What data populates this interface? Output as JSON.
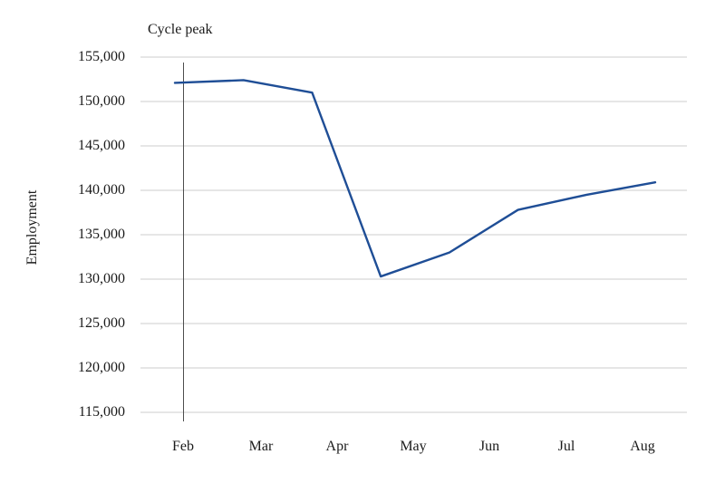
{
  "figure": {
    "ylabel": "Employment",
    "annotation_label": "Cycle peak"
  },
  "chart_data": {
    "type": "line",
    "title": "",
    "xlabel": "",
    "ylabel": "Employment",
    "annotation": {
      "label": "Cycle peak",
      "style": "vertical-line",
      "at_x_tick": "Feb"
    },
    "x_tick_labels": [
      "Feb",
      "Mar",
      "Apr",
      "May",
      "Jun",
      "Jul",
      "Aug"
    ],
    "y_tick_labels": [
      "155,000",
      "150,000",
      "145,000",
      "140,000",
      "135,000",
      "130,000",
      "125,000",
      "120,000",
      "115,000"
    ],
    "ylim": [
      115000,
      155000
    ],
    "y_tick_step": 5000,
    "grid": "horizontal-only",
    "legend": "none",
    "series": [
      {
        "name": "Employment",
        "color": "#1f4e96",
        "values": [
          152100,
          152400,
          151000,
          130300,
          133000,
          137800,
          139500,
          140900
        ]
      }
    ],
    "colors": {
      "line": "#1f4e96",
      "gridline": "#d6d6d6",
      "annotation_line": "#4d4d4d",
      "text": "#1a1a1a"
    }
  }
}
